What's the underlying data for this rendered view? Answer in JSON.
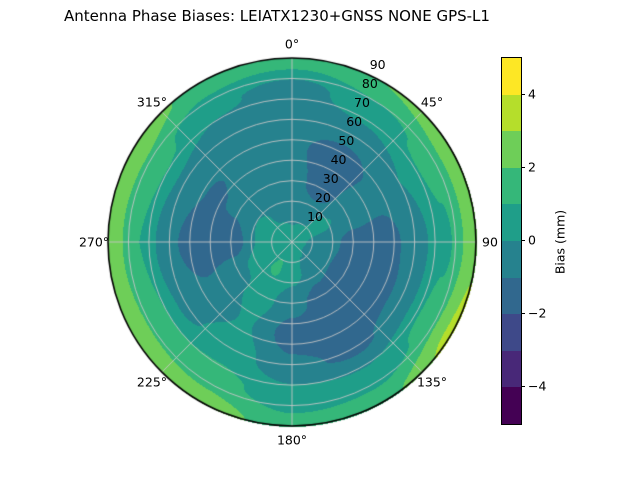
{
  "title": "Antenna Phase Biases: LEIATX1230+GNSS NONE GPS-L1",
  "chart_data": {
    "type": "heatmap",
    "projection": "polar",
    "title": "Antenna Phase Biases: LEIATX1230+GNSS NONE GPS-L1",
    "colormap": "viridis",
    "value_range": [
      -5,
      5
    ],
    "bin_size": 1,
    "bin_colors": [
      "#440154",
      "#482878",
      "#3e4989",
      "#31688e",
      "#26828e",
      "#1f9e89",
      "#35b779",
      "#6ece58",
      "#b5de2b",
      "#fde725"
    ],
    "angular_ticks": [
      {
        "label": "0°",
        "angle": 0
      },
      {
        "label": "45°",
        "angle": 45
      },
      {
        "label": "90",
        "angle": 90
      },
      {
        "label": "135°",
        "angle": 135
      },
      {
        "label": "180°",
        "angle": 180
      },
      {
        "label": "225°",
        "angle": 225
      },
      {
        "label": "270°",
        "angle": 270
      },
      {
        "label": "315°",
        "angle": 315
      }
    ],
    "radial_ticks": [
      {
        "label": "10",
        "value": 10
      },
      {
        "label": "20",
        "value": 20
      },
      {
        "label": "30",
        "value": 30
      },
      {
        "label": "40",
        "value": 40
      },
      {
        "label": "50",
        "value": 50
      },
      {
        "label": "60",
        "value": 60
      },
      {
        "label": "70",
        "value": 70
      },
      {
        "label": "80",
        "value": 80
      },
      {
        "label": "90",
        "value": 90
      }
    ],
    "radial_max": 90,
    "radial_label_angle": 22.5,
    "colorbar": {
      "label": "Bias (mm)",
      "ticks": [
        {
          "label": "4",
          "value": 4
        },
        {
          "label": "2",
          "value": 2
        },
        {
          "label": "0",
          "value": 0
        },
        {
          "label": "−2",
          "value": -2
        },
        {
          "label": "−4",
          "value": -4
        }
      ]
    },
    "grid": {
      "azimuth_deg": [
        0,
        30,
        60,
        90,
        120,
        150,
        180,
        210,
        240,
        270,
        300,
        330
      ],
      "radius_deg": [
        0,
        15,
        30,
        45,
        60,
        75,
        90
      ],
      "bias_mm": [
        [
          0.5,
          -0.3,
          -0.6,
          -0.8,
          -0.7,
          -0.5,
          1.6
        ],
        [
          0.5,
          -0.2,
          -1.6,
          -1.7,
          -0.6,
          0.6,
          2.0
        ],
        [
          0.4,
          0.2,
          -0.3,
          -0.6,
          0.0,
          1.2,
          2.6
        ],
        [
          0.3,
          -0.4,
          -1.4,
          -1.6,
          -0.5,
          0.8,
          2.8
        ],
        [
          0.3,
          -0.6,
          -1.7,
          -1.8,
          -0.6,
          1.3,
          3.3
        ],
        [
          0.4,
          -0.3,
          -1.5,
          -2.0,
          -1.2,
          0.3,
          1.8
        ],
        [
          0.6,
          0.4,
          -0.6,
          -1.5,
          -0.8,
          0.4,
          1.4
        ],
        [
          0.8,
          1.1,
          0.4,
          0.1,
          0.5,
          1.3,
          2.6
        ],
        [
          0.8,
          0.8,
          -0.3,
          -0.8,
          -0.3,
          1.4,
          2.9
        ],
        [
          0.6,
          0.2,
          -1.6,
          -1.9,
          -0.8,
          1.0,
          2.8
        ],
        [
          0.6,
          0.3,
          -0.9,
          -1.1,
          -0.3,
          1.3,
          2.7
        ],
        [
          0.5,
          -0.1,
          -0.5,
          -0.8,
          -0.9,
          0.2,
          1.7
        ]
      ]
    },
    "layout": {
      "grid_on": true,
      "grid_color": "#c6c6c6",
      "background": "#ffffff",
      "outline_color": "#000000"
    }
  }
}
